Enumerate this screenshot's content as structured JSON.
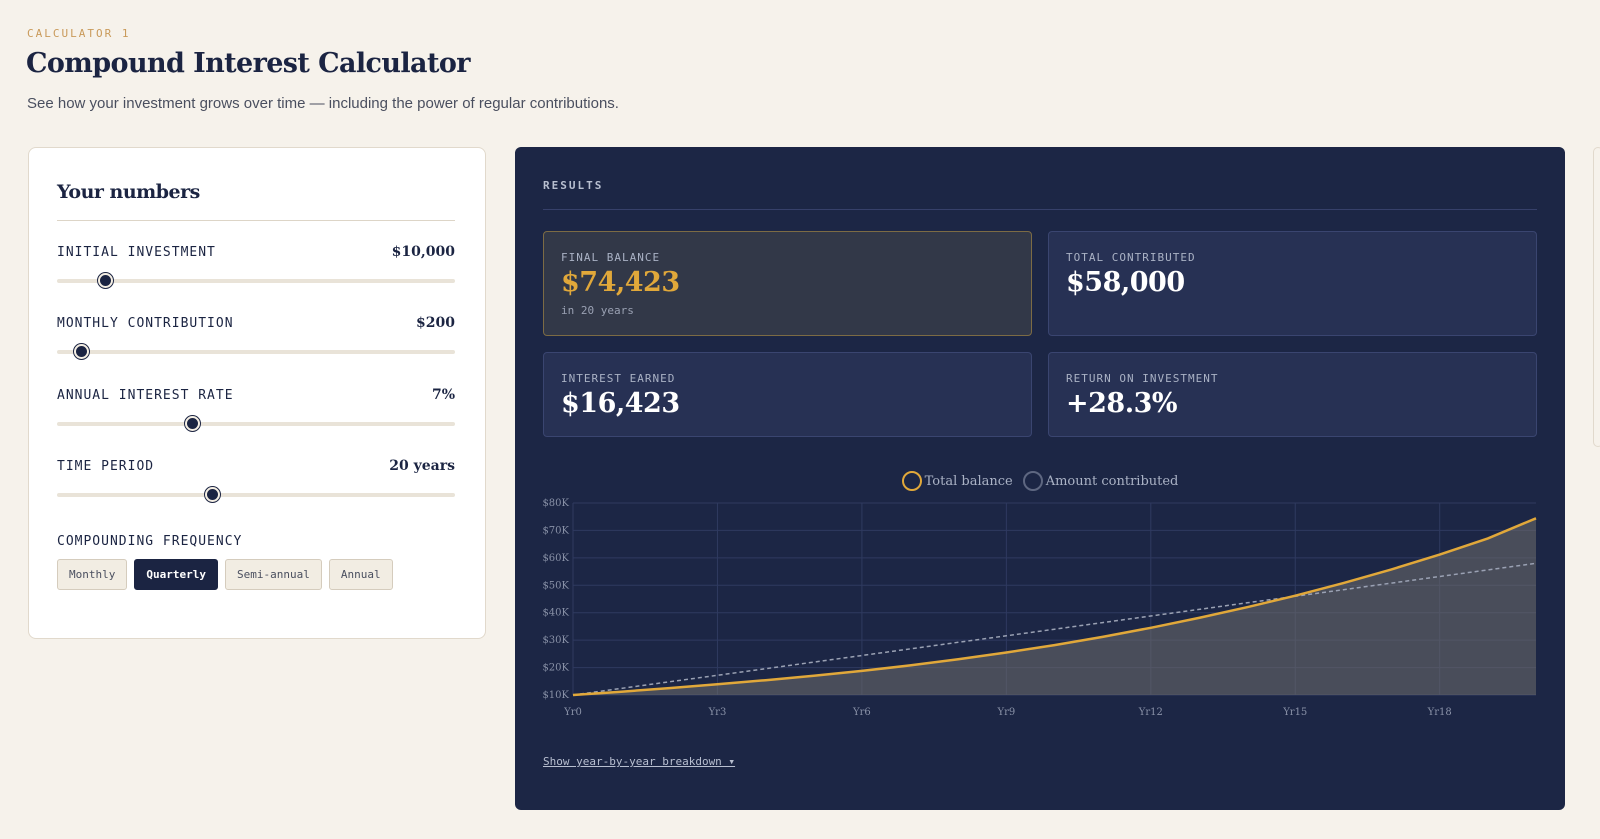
{
  "header": {
    "eyebrow": "CALCULATOR 1",
    "title": "Compound Interest Calculator",
    "subtitle": "See how your investment grows over time — including the power of regular contributions."
  },
  "inputs": {
    "title": "Your numbers",
    "fields": [
      {
        "label": "INITIAL INVESTMENT",
        "value": "$10,000",
        "slider_fraction": 0.12
      },
      {
        "label": "MONTHLY CONTRIBUTION",
        "value": "$200",
        "slider_fraction": 0.06
      },
      {
        "label": "ANNUAL INTEREST RATE",
        "value": "7%",
        "slider_fraction": 0.34
      },
      {
        "label": "TIME PERIOD",
        "value": "20 years",
        "slider_fraction": 0.39
      }
    ],
    "frequency": {
      "label": "COMPOUNDING FREQUENCY",
      "options": [
        "Monthly",
        "Quarterly",
        "Semi-annual",
        "Annual"
      ],
      "selected": "Quarterly"
    }
  },
  "results": {
    "label": "RESULTS",
    "cards": [
      {
        "label": "FINAL BALANCE",
        "value": "$74,423",
        "note": "in 20 years"
      },
      {
        "label": "TOTAL CONTRIBUTED",
        "value": "$58,000",
        "note": ""
      },
      {
        "label": "INTEREST EARNED",
        "value": "$16,423",
        "note": ""
      },
      {
        "label": "RETURN ON INVESTMENT",
        "value": "+28.3%",
        "note": ""
      }
    ],
    "breakdown_link": "Show year-by-year breakdown ▾"
  },
  "colors": {
    "accent": "#e1a83a",
    "navy": "#1c2645",
    "contributed_line": "#9aa1b3"
  },
  "chart_data": {
    "type": "area",
    "legend_placement": "top",
    "grid": true,
    "categories": [
      "Yr 0",
      "Yr 1",
      "Yr 2",
      "Yr 3",
      "Yr 4",
      "Yr 5",
      "Yr 6",
      "Yr 7",
      "Yr 8",
      "Yr 9",
      "Yr 10",
      "Yr 11",
      "Yr 12",
      "Yr 13",
      "Yr 14",
      "Yr 15",
      "Yr 16",
      "Yr 17",
      "Yr 18",
      "Yr 19",
      "Yr 20"
    ],
    "xtick_labels": [
      "Yr 0",
      "Yr 3",
      "Yr 6",
      "Yr 9",
      "Yr 12",
      "Yr 15",
      "Yr 18"
    ],
    "yticks": [
      10000,
      20000,
      30000,
      40000,
      50000,
      60000,
      70000,
      80000
    ],
    "ytick_labels": [
      "$10K",
      "$20K",
      "$30K",
      "$40K",
      "$50K",
      "$60K",
      "$70K",
      "$80K"
    ],
    "ylim": [
      10000,
      80000
    ],
    "series": [
      {
        "name": "Total balance",
        "values": [
          10000,
          11200,
          12500,
          13900,
          15400,
          17000,
          18800,
          20800,
          23000,
          25500,
          28200,
          31200,
          34500,
          38100,
          42000,
          46200,
          50800,
          55800,
          61200,
          67100,
          74423
        ]
      },
      {
        "name": "Amount contributed",
        "values": [
          10000,
          12400,
          14800,
          17200,
          19600,
          22000,
          24400,
          26800,
          29200,
          31600,
          34000,
          36400,
          38800,
          41200,
          43600,
          46000,
          48400,
          50800,
          53200,
          55600,
          58000
        ]
      }
    ]
  }
}
